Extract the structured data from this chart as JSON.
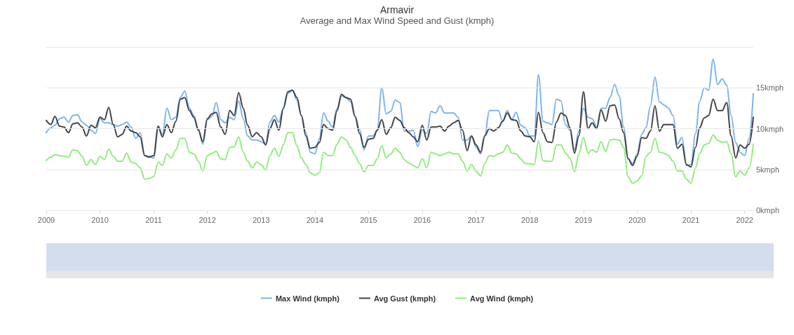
{
  "chart_data": {
    "type": "line",
    "title": "Armavir",
    "subtitle": "Average and Max Wind Speed and Gust (kmph)",
    "x": [
      "2009-01",
      "2009-02",
      "2009-03",
      "2009-04",
      "2009-05",
      "2009-06",
      "2009-07",
      "2009-08",
      "2009-09",
      "2009-10",
      "2009-11",
      "2009-12",
      "2010-01",
      "2010-02",
      "2010-03",
      "2010-04",
      "2010-05",
      "2010-06",
      "2010-07",
      "2010-08",
      "2010-09",
      "2010-10",
      "2010-11",
      "2010-12",
      "2011-01",
      "2011-02",
      "2011-03",
      "2011-04",
      "2011-05",
      "2011-06",
      "2011-07",
      "2011-08",
      "2011-09",
      "2011-10",
      "2011-11",
      "2011-12",
      "2012-01",
      "2012-02",
      "2012-03",
      "2012-04",
      "2012-05",
      "2012-06",
      "2012-07",
      "2012-08",
      "2012-09",
      "2012-10",
      "2012-11",
      "2012-12",
      "2013-01",
      "2013-02",
      "2013-03",
      "2013-04",
      "2013-05",
      "2013-06",
      "2013-07",
      "2013-08",
      "2013-09",
      "2013-10",
      "2013-11",
      "2013-12",
      "2014-01",
      "2014-02",
      "2014-03",
      "2014-04",
      "2014-05",
      "2014-06",
      "2014-07",
      "2014-08",
      "2014-09",
      "2014-10",
      "2014-11",
      "2014-12",
      "2015-01",
      "2015-02",
      "2015-03",
      "2015-04",
      "2015-05",
      "2015-06",
      "2015-07",
      "2015-08",
      "2015-09",
      "2015-10",
      "2015-11",
      "2015-12",
      "2016-01",
      "2016-02",
      "2016-03",
      "2016-04",
      "2016-05",
      "2016-06",
      "2016-07",
      "2016-08",
      "2016-09",
      "2016-10",
      "2016-11",
      "2016-12",
      "2017-01",
      "2017-02",
      "2017-03",
      "2017-04",
      "2017-05",
      "2017-06",
      "2017-07",
      "2017-08",
      "2017-09",
      "2017-10",
      "2017-11",
      "2017-12",
      "2018-01",
      "2018-02",
      "2018-03",
      "2018-04",
      "2018-05",
      "2018-06",
      "2018-07",
      "2018-08",
      "2018-09",
      "2018-10",
      "2018-11",
      "2018-12",
      "2019-01",
      "2019-02",
      "2019-03",
      "2019-04",
      "2019-05",
      "2019-06",
      "2019-07",
      "2019-08",
      "2019-09",
      "2019-10",
      "2019-11",
      "2019-12",
      "2020-01",
      "2020-02",
      "2020-03",
      "2020-04",
      "2020-05",
      "2020-06",
      "2020-07",
      "2020-08",
      "2020-09",
      "2020-10",
      "2020-11",
      "2020-12",
      "2021-01",
      "2021-02",
      "2021-03",
      "2021-04",
      "2021-05",
      "2021-06",
      "2021-07",
      "2021-08",
      "2021-09",
      "2021-10",
      "2021-11",
      "2021-12",
      "2022-01",
      "2022-02",
      "2022-03"
    ],
    "series": [
      {
        "name": "Max Wind (kmph)",
        "color": "#7cb5ec",
        "values": [
          9.5,
          10.1,
          10.4,
          11.2,
          11.4,
          10.8,
          11.6,
          11.7,
          10.8,
          10.4,
          9.8,
          9.4,
          11.2,
          10.7,
          10.7,
          10.5,
          10.3,
          10.5,
          10.8,
          10.2,
          8.8,
          9.5,
          6.7,
          6.6,
          6.4,
          10.1,
          9.3,
          12.5,
          11.1,
          11.4,
          13.8,
          14.6,
          12.5,
          11.6,
          10.0,
          8.1,
          11.1,
          11.5,
          13.2,
          11.1,
          10.7,
          11.4,
          11.1,
          13.4,
          11.2,
          9.1,
          8.6,
          8.6,
          8.4,
          8.1,
          10.8,
          11.6,
          10.8,
          12.5,
          14.3,
          14.7,
          13.5,
          11.6,
          9.5,
          7.1,
          6.9,
          8.8,
          11.9,
          10.9,
          10.2,
          12.5,
          14.0,
          13.8,
          13.3,
          11.5,
          9.9,
          7.4,
          9.1,
          9.1,
          9.8,
          15.0,
          11.8,
          12.1,
          13.5,
          13.2,
          9.7,
          9.7,
          9.8,
          7.8,
          9.8,
          9.4,
          12.1,
          11.9,
          12.8,
          11.9,
          11.9,
          11.9,
          11.4,
          8.6,
          8.6,
          9.1,
          7.7,
          6.9,
          9.1,
          12.2,
          12.2,
          12.2,
          10.9,
          12.2,
          11.1,
          12.0,
          10.4,
          10.1,
          9.1,
          9.1,
          16.6,
          10.9,
          10.7,
          10.5,
          13.6,
          13.4,
          10.5,
          9.8,
          7.4,
          9.7,
          12.5,
          11.4,
          11.2,
          10.2,
          12.5,
          12.5,
          13.8,
          15.4,
          14.0,
          10.2,
          6.3,
          5.7,
          6.9,
          9.3,
          10.1,
          12.8,
          16.3,
          13.3,
          12.9,
          12.5,
          11.6,
          8.1,
          8.9,
          5.5,
          5.6,
          9.4,
          13.3,
          15.0,
          14.7,
          18.5,
          15.4,
          16.1,
          15.3,
          11.6,
          8.3,
          7.1,
          6.7,
          8.8,
          14.3
        ]
      },
      {
        "name": "Avg Gust (kmph)",
        "color": "#434348",
        "values": [
          11.0,
          10.5,
          11.5,
          10.3,
          10.2,
          9.5,
          10.6,
          10.7,
          10.2,
          9.1,
          10.4,
          10.1,
          11.4,
          11.1,
          12.6,
          10.5,
          9.0,
          9.3,
          10.3,
          9.7,
          9.5,
          9.0,
          6.7,
          6.5,
          6.7,
          10.3,
          9.0,
          10.5,
          9.5,
          10.9,
          13.6,
          13.8,
          12.2,
          11.4,
          9.8,
          8.4,
          11.2,
          11.8,
          12.0,
          10.2,
          9.3,
          12.2,
          11.6,
          14.4,
          12.5,
          10.4,
          9.0,
          9.5,
          9.0,
          8.0,
          10.0,
          11.1,
          9.8,
          12.5,
          14.5,
          14.7,
          13.8,
          11.6,
          9.1,
          7.6,
          7.7,
          8.3,
          10.5,
          10.0,
          9.8,
          12.2,
          14.2,
          13.8,
          13.6,
          11.5,
          9.4,
          7.7,
          8.7,
          8.8,
          9.8,
          11.1,
          9.3,
          10.1,
          11.4,
          11.0,
          10.1,
          9.5,
          9.0,
          8.4,
          10.4,
          8.6,
          10.2,
          10.2,
          10.3,
          9.7,
          10.3,
          10.7,
          11.0,
          9.8,
          7.3,
          9.1,
          8.0,
          7.1,
          9.1,
          10.0,
          9.7,
          10.1,
          10.9,
          11.9,
          11.1,
          11.0,
          9.7,
          9.1,
          9.0,
          8.4,
          12.0,
          9.5,
          8.4,
          8.3,
          10.8,
          11.9,
          11.6,
          10.1,
          7.0,
          9.1,
          14.5,
          10.0,
          10.7,
          10.0,
          12.3,
          10.9,
          12.8,
          12.9,
          11.2,
          9.5,
          6.3,
          5.5,
          6.6,
          8.9,
          8.8,
          9.7,
          12.8,
          9.7,
          10.5,
          10.5,
          10.5,
          7.6,
          8.1,
          5.6,
          5.3,
          7.7,
          10.1,
          11.3,
          11.6,
          13.6,
          12.2,
          12.2,
          13.2,
          9.1,
          6.4,
          8.0,
          7.6,
          8.1,
          11.4
        ]
      },
      {
        "name": "Avg Wind (kmph)",
        "color": "#90ed7d",
        "values": [
          6.1,
          6.5,
          6.8,
          6.7,
          6.6,
          6.5,
          7.4,
          7.3,
          6.6,
          5.5,
          6.2,
          5.6,
          6.6,
          6.2,
          7.5,
          6.6,
          6.0,
          6.0,
          7.0,
          5.9,
          5.7,
          5.2,
          3.8,
          3.9,
          4.1,
          5.9,
          5.5,
          6.9,
          6.4,
          7.4,
          8.8,
          8.8,
          7.1,
          6.9,
          6.0,
          4.8,
          6.7,
          7.0,
          7.2,
          6.3,
          6.2,
          7.7,
          7.8,
          9.0,
          7.1,
          6.0,
          5.2,
          5.9,
          5.6,
          4.9,
          6.7,
          7.6,
          6.6,
          8.0,
          9.5,
          9.5,
          7.9,
          6.4,
          5.6,
          4.6,
          4.3,
          4.6,
          7.1,
          6.7,
          6.7,
          8.1,
          9.0,
          8.6,
          7.7,
          6.7,
          5.7,
          4.7,
          5.5,
          5.5,
          6.3,
          7.9,
          6.4,
          6.9,
          7.6,
          7.1,
          6.2,
          5.8,
          5.5,
          5.2,
          6.3,
          5.2,
          7.1,
          6.9,
          6.7,
          6.9,
          7.1,
          6.9,
          6.9,
          6.0,
          4.8,
          5.6,
          4.8,
          4.2,
          5.7,
          6.7,
          6.6,
          6.9,
          7.1,
          8.0,
          7.0,
          6.9,
          6.3,
          5.7,
          5.7,
          5.6,
          8.5,
          6.1,
          6.0,
          6.0,
          8.0,
          8.0,
          7.0,
          6.4,
          4.7,
          6.9,
          8.9,
          7.0,
          7.4,
          7.1,
          8.4,
          7.2,
          8.6,
          8.7,
          8.6,
          7.7,
          4.1,
          3.3,
          3.6,
          4.2,
          6.6,
          7.1,
          8.8,
          7.1,
          7.0,
          6.7,
          6.0,
          4.8,
          4.8,
          3.8,
          3.3,
          5.2,
          6.9,
          8.0,
          8.2,
          9.2,
          8.6,
          8.3,
          8.4,
          6.9,
          4.1,
          4.8,
          4.3,
          5.2,
          8.1
        ]
      }
    ],
    "xlim": [
      "2009-01",
      "2022-03"
    ],
    "xticks": [
      "2009",
      "2010",
      "2011",
      "2012",
      "2013",
      "2014",
      "2015",
      "2016",
      "2017",
      "2018",
      "2019",
      "2020",
      "2021",
      "2022"
    ],
    "ylim": [
      0,
      20
    ],
    "yticks": [
      {
        "value": 0,
        "label": "0kmph"
      },
      {
        "value": 5,
        "label": "5kmph"
      },
      {
        "value": 10,
        "label": "10kmph"
      },
      {
        "value": 15,
        "label": "15kmph"
      },
      {
        "value": 20,
        "label": null
      }
    ],
    "grid": "y",
    "legend": "bottom",
    "marker": "none",
    "line_style": "solid"
  }
}
